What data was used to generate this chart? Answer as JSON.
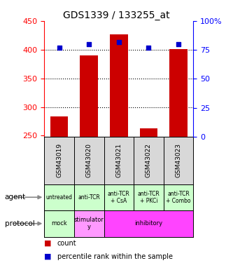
{
  "title": "GDS1339 / 133255_at",
  "samples": [
    "GSM43019",
    "GSM43020",
    "GSM43021",
    "GSM43022",
    "GSM43023"
  ],
  "count_values": [
    283,
    390,
    427,
    263,
    401
  ],
  "percentile_values": [
    77,
    80,
    82,
    77,
    80
  ],
  "ylim_left": [
    248,
    450
  ],
  "ylim_right": [
    0,
    100
  ],
  "left_ticks": [
    250,
    300,
    350,
    400,
    450
  ],
  "right_ticks": [
    0,
    25,
    50,
    75,
    100
  ],
  "right_tick_labels": [
    "0",
    "25",
    "50",
    "75",
    "100%"
  ],
  "agent_labels": [
    "untreated",
    "anti-TCR",
    "anti-TCR\n+ CsA",
    "anti-TCR\n+ PKCi",
    "anti-TCR\n+ Combo"
  ],
  "agent_color": "#ccffcc",
  "protocol_mock_color": "#ccffcc",
  "protocol_stim_color": "#ff99ff",
  "protocol_inhib_color": "#ff44ff",
  "sample_bg_color": "#d8d8d8",
  "bar_color": "#cc0000",
  "dot_color": "#0000cc",
  "bar_bottom": 248
}
